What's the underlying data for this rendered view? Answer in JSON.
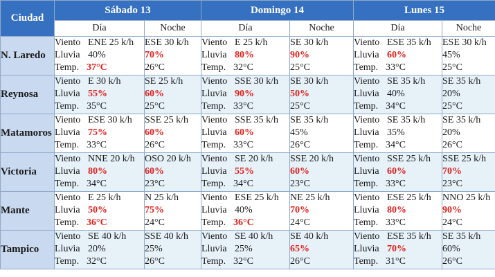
{
  "header": {
    "city_label": "Ciudad",
    "period_labels": [
      "Día",
      "Noche"
    ]
  },
  "labels": {
    "wind": "Viento",
    "rain": "Lluvia",
    "temp": "Temp."
  },
  "colors": {
    "header_bg": "#3670c0",
    "city_bg": "#c9daf0",
    "alt_row_bg": "#e6f1f8",
    "highlight": "#e0201b"
  },
  "days": [
    {
      "label": "Sábado 13"
    },
    {
      "label": "Domingo 14"
    },
    {
      "label": "Lunes 15"
    }
  ],
  "rows": [
    {
      "city": "N. Laredo",
      "cells": [
        {
          "wind": "ENE 25 k/h",
          "rain": "40%",
          "rain_hot": false,
          "temp": "37°C",
          "temp_hot": true
        },
        {
          "wind": "ESE 30 k/h",
          "rain": "70%",
          "rain_hot": true,
          "temp": "26°C",
          "temp_hot": false
        },
        {
          "wind": "E 25 k/h",
          "rain": "80%",
          "rain_hot": true,
          "temp": "32°C",
          "temp_hot": false
        },
        {
          "wind": "SE 30 k/h",
          "rain": "90%",
          "rain_hot": true,
          "temp": "25°C",
          "temp_hot": false
        },
        {
          "wind": "ESE 35 k/h",
          "rain": "60%",
          "rain_hot": true,
          "temp": "33°C",
          "temp_hot": false
        },
        {
          "wind": "ESE 30 k/h",
          "rain": "45%",
          "rain_hot": false,
          "temp": "25°C",
          "temp_hot": false
        }
      ]
    },
    {
      "city": "Reynosa",
      "cells": [
        {
          "wind": "E 30 k/h",
          "rain": "55%",
          "rain_hot": true,
          "temp": "35°C",
          "temp_hot": false
        },
        {
          "wind": "SE 25 k/h",
          "rain": "60%",
          "rain_hot": true,
          "temp": "25°C",
          "temp_hot": false
        },
        {
          "wind": "SSE 30 k/h",
          "rain": "90%",
          "rain_hot": true,
          "temp": "33°C",
          "temp_hot": false
        },
        {
          "wind": "SE 30 k/h",
          "rain": "50%",
          "rain_hot": true,
          "temp": "25°C",
          "temp_hot": false
        },
        {
          "wind": "SE 35 k/h",
          "rain": "40%",
          "rain_hot": false,
          "temp": "34°C",
          "temp_hot": false
        },
        {
          "wind": "SE 35 k/h",
          "rain": "20%",
          "rain_hot": false,
          "temp": "25°C",
          "temp_hot": false
        }
      ]
    },
    {
      "city": "Matamoros",
      "cells": [
        {
          "wind": "ESE 30 k/h",
          "rain": "75%",
          "rain_hot": true,
          "temp": "33°C",
          "temp_hot": false
        },
        {
          "wind": "SSE 25 k/h",
          "rain": "60%",
          "rain_hot": true,
          "temp": "26°C",
          "temp_hot": false
        },
        {
          "wind": "SSE 35 k/h",
          "rain": "60%",
          "rain_hot": true,
          "temp": "33°C",
          "temp_hot": false
        },
        {
          "wind": "SE 35 k/h",
          "rain": "45%",
          "rain_hot": false,
          "temp": "26°C",
          "temp_hot": false
        },
        {
          "wind": "SE 35 k/h",
          "rain": "35%",
          "rain_hot": false,
          "temp": "34°C",
          "temp_hot": false
        },
        {
          "wind": "SE 35 k/h",
          "rain": "20%",
          "rain_hot": false,
          "temp": "26°C",
          "temp_hot": false
        }
      ]
    },
    {
      "city": "Victoria",
      "cells": [
        {
          "wind": "NNE 20 k/h",
          "rain": "80%",
          "rain_hot": true,
          "temp": "34°C",
          "temp_hot": false
        },
        {
          "wind": "OSO 20 k/h",
          "rain": "60%",
          "rain_hot": true,
          "temp": "23°C",
          "temp_hot": false
        },
        {
          "wind": "SE 20 k/h",
          "rain": "55%",
          "rain_hot": true,
          "temp": "34°C",
          "temp_hot": false
        },
        {
          "wind": "SSE 20 k/h",
          "rain": "60%",
          "rain_hot": true,
          "temp": "23°C",
          "temp_hot": false
        },
        {
          "wind": "SSE 25 k/h",
          "rain": "60%",
          "rain_hot": true,
          "temp": "33°C",
          "temp_hot": false
        },
        {
          "wind": "SSE 25 k/h",
          "rain": "70%",
          "rain_hot": true,
          "temp": "23°C",
          "temp_hot": false
        }
      ]
    },
    {
      "city": "Mante",
      "cells": [
        {
          "wind": "E 25 k/h",
          "rain": "50%",
          "rain_hot": true,
          "temp": "36°C",
          "temp_hot": true
        },
        {
          "wind": "N 25 k/h",
          "rain": "75%",
          "rain_hot": true,
          "temp": "24°C",
          "temp_hot": false
        },
        {
          "wind": "ESE 25 k/h",
          "rain": "40%",
          "rain_hot": false,
          "temp": "36°C",
          "temp_hot": true
        },
        {
          "wind": "NE 25 k/h",
          "rain": "70%",
          "rain_hot": true,
          "temp": "24°C",
          "temp_hot": false
        },
        {
          "wind": "ESE 25 k/h",
          "rain": "80%",
          "rain_hot": true,
          "temp": "33°C",
          "temp_hot": false
        },
        {
          "wind": "NNO 25 k/h",
          "rain": "90%",
          "rain_hot": true,
          "temp": "24°C",
          "temp_hot": false
        }
      ]
    },
    {
      "city": "Tampico",
      "cells": [
        {
          "wind": "SE 40 k/h",
          "rain": "20%",
          "rain_hot": false,
          "temp": "32°C",
          "temp_hot": false
        },
        {
          "wind": "SSE 40 k/h",
          "rain": "25%",
          "rain_hot": false,
          "temp": "26°C",
          "temp_hot": false
        },
        {
          "wind": "SE 40 k/h",
          "rain": "25%",
          "rain_hot": false,
          "temp": "32°C",
          "temp_hot": false
        },
        {
          "wind": "SE 40 k/h",
          "rain": "65%",
          "rain_hot": true,
          "temp": "26°C",
          "temp_hot": false
        },
        {
          "wind": "ESE 35 k/h",
          "rain": "70%",
          "rain_hot": true,
          "temp": "31°C",
          "temp_hot": false
        },
        {
          "wind": "SE 35 k/h",
          "rain": "60%",
          "rain_hot": false,
          "temp": "26°C",
          "temp_hot": false
        }
      ]
    }
  ]
}
